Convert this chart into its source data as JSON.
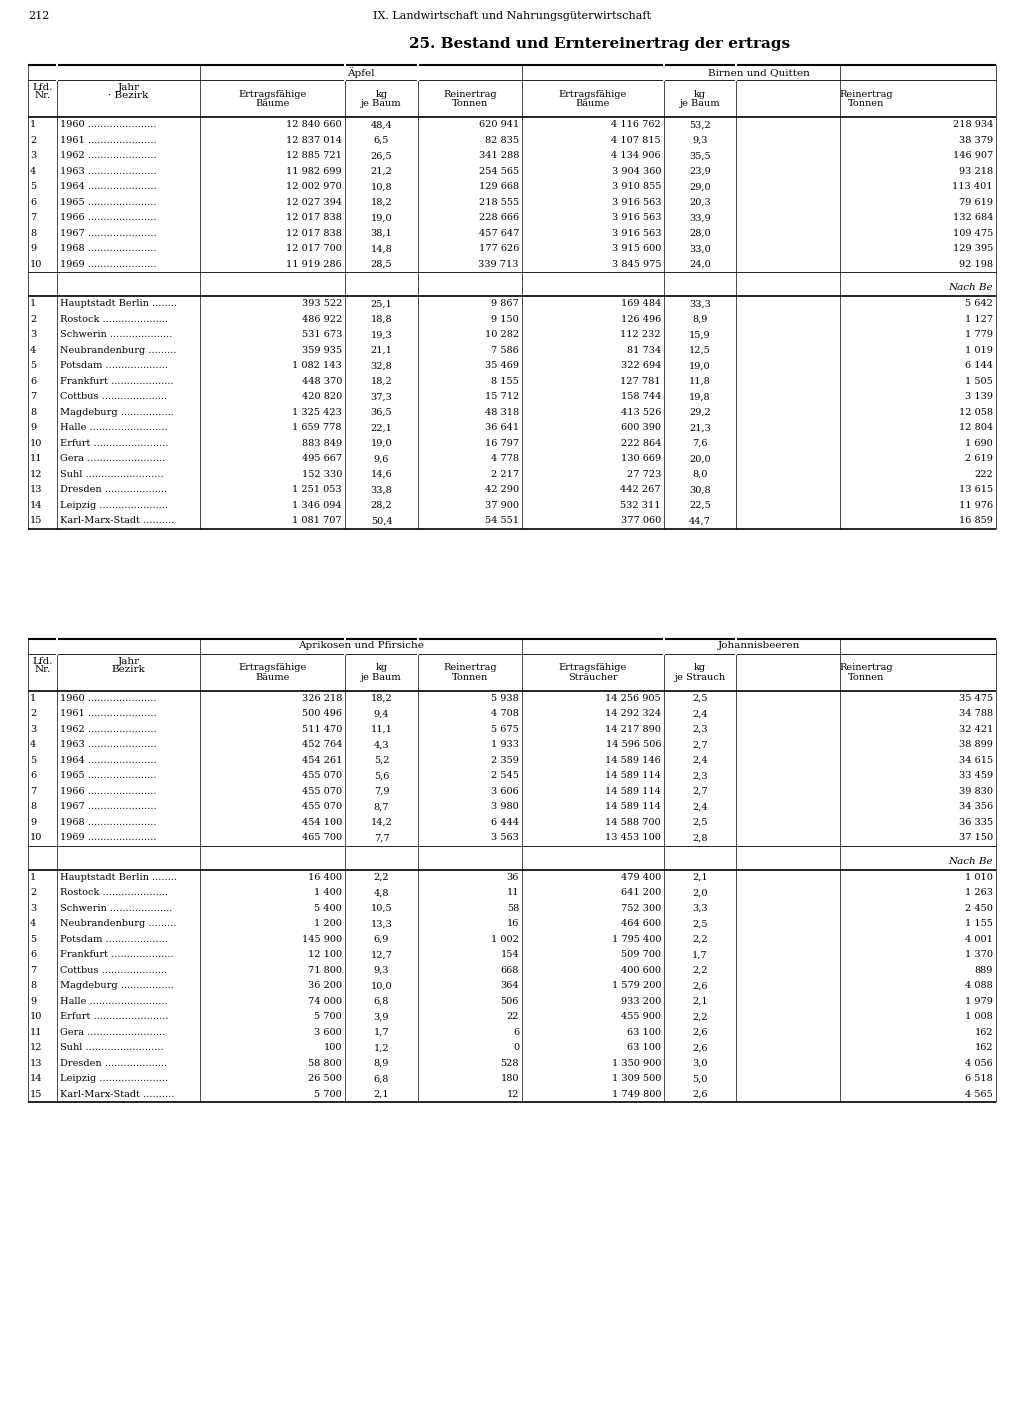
{
  "page_number": "212",
  "header_center": "IX. Landwirtschaft und Nahrungsgüterwirtschaft",
  "title": "25. Bestand und Erntereinertrag der ertrags",
  "table1": {
    "years_rows": [
      [
        "1",
        "1960",
        "12 840 660",
        "48,4",
        "620 941",
        "4 116 762",
        "53,2",
        "218 934"
      ],
      [
        "2",
        "1961",
        "12 837 014",
        "6,5",
        "82 835",
        "4 107 815",
        "9,3",
        "38 379"
      ],
      [
        "3",
        "1962",
        "12 885 721",
        "26,5",
        "341 288",
        "4 134 906",
        "35,5",
        "146 907"
      ],
      [
        "4",
        "1963",
        "11 982 699",
        "21,2",
        "254 565",
        "3 904 360",
        "23,9",
        "93 218"
      ],
      [
        "5",
        "1964",
        "12 002 970",
        "10,8",
        "129 668",
        "3 910 855",
        "29,0",
        "113 401"
      ],
      [
        "6",
        "1965",
        "12 027 394",
        "18,2",
        "218 555",
        "3 916 563",
        "20,3",
        "79 619"
      ],
      [
        "7",
        "1966",
        "12 017 838",
        "19,0",
        "228 666",
        "3 916 563",
        "33,9",
        "132 684"
      ],
      [
        "8",
        "1967",
        "12 017 838",
        "38,1",
        "457 647",
        "3 916 563",
        "28,0",
        "109 475"
      ],
      [
        "9",
        "1968",
        "12 017 700",
        "14,8",
        "177 626",
        "3 915 600",
        "33,0",
        "129 395"
      ],
      [
        "10",
        "1969",
        "11 919 286",
        "28,5",
        "339 713",
        "3 845 975",
        "24,0",
        "92 198"
      ]
    ],
    "bezirk_rows": [
      [
        "1",
        "Hauptstadt Berlin ........",
        "393 522",
        "25,1",
        "9 867",
        "169 484",
        "33,3",
        "5 642"
      ],
      [
        "2",
        "Rostock .....................",
        "486 922",
        "18,8",
        "9 150",
        "126 496",
        "8,9",
        "1 127"
      ],
      [
        "3",
        "Schwerin ....................",
        "531 673",
        "19,3",
        "10 282",
        "112 232",
        "15,9",
        "1 779"
      ],
      [
        "4",
        "Neubrandenburg .........",
        "359 935",
        "21,1",
        "7 586",
        "81 734",
        "12,5",
        "1 019"
      ],
      [
        "5",
        "Potsdam ....................",
        "1 082 143",
        "32,8",
        "35 469",
        "322 694",
        "19,0",
        "6 144"
      ],
      [
        "6",
        "Frankfurt ....................",
        "448 370",
        "18,2",
        "8 155",
        "127 781",
        "11,8",
        "1 505"
      ],
      [
        "7",
        "Cottbus .....................",
        "420 820",
        "37,3",
        "15 712",
        "158 744",
        "19,8",
        "3 139"
      ],
      [
        "8",
        "Magdeburg .................",
        "1 325 423",
        "36,5",
        "48 318",
        "413 526",
        "29,2",
        "12 058"
      ],
      [
        "9",
        "Halle .........................",
        "1 659 778",
        "22,1",
        "36 641",
        "600 390",
        "21,3",
        "12 804"
      ],
      [
        "10",
        "Erfurt ........................",
        "883 849",
        "19,0",
        "16 797",
        "222 864",
        "7,6",
        "1 690"
      ],
      [
        "11",
        "Gera .........................",
        "495 667",
        "9,6",
        "4 778",
        "130 669",
        "20,0",
        "2 619"
      ],
      [
        "12",
        "Suhl .........................",
        "152 330",
        "14,6",
        "2 217",
        "27 723",
        "8,0",
        "222"
      ],
      [
        "13",
        "Dresden ....................",
        "1 251 053",
        "33,8",
        "42 290",
        "442 267",
        "30,8",
        "13 615"
      ],
      [
        "14",
        "Leipzig ......................",
        "1 346 094",
        "28,2",
        "37 900",
        "532 311",
        "22,5",
        "11 976"
      ],
      [
        "15",
        "Karl-Marx-Stadt ..........",
        "1 081 707",
        "50,4",
        "54 551",
        "377 060",
        "44,7",
        "16 859"
      ]
    ]
  },
  "table2": {
    "years_rows": [
      [
        "1",
        "1960",
        "326 218",
        "18,2",
        "5 938",
        "14 256 905",
        "2,5",
        "35 475"
      ],
      [
        "2",
        "1961",
        "500 496",
        "9,4",
        "4 708",
        "14 292 324",
        "2,4",
        "34 788"
      ],
      [
        "3",
        "1962",
        "511 470",
        "11,1",
        "5 675",
        "14 217 890",
        "2,3",
        "32 421"
      ],
      [
        "4",
        "1963",
        "452 764",
        "4,3",
        "1 933",
        "14 596 506",
        "2,7",
        "38 899"
      ],
      [
        "5",
        "1964",
        "454 261",
        "5,2",
        "2 359",
        "14 589 146",
        "2,4",
        "34 615"
      ],
      [
        "6",
        "1965",
        "455 070",
        "5,6",
        "2 545",
        "14 589 114",
        "2,3",
        "33 459"
      ],
      [
        "7",
        "1966",
        "455 070",
        "7,9",
        "3 606",
        "14 589 114",
        "2,7",
        "39 830"
      ],
      [
        "8",
        "1967",
        "455 070",
        "8,7",
        "3 980",
        "14 589 114",
        "2,4",
        "34 356"
      ],
      [
        "9",
        "1968",
        "454 100",
        "14,2",
        "6 444",
        "14 588 700",
        "2,5",
        "36 335"
      ],
      [
        "10",
        "1969",
        "465 700",
        "7,7",
        "3 563",
        "13 453 100",
        "2,8",
        "37 150"
      ]
    ],
    "bezirk_rows": [
      [
        "1",
        "Hauptstadt Berlin ........",
        "16 400",
        "2,2",
        "36",
        "479 400",
        "2,1",
        "1 010"
      ],
      [
        "2",
        "Rostock .....................",
        "1 400",
        "4,8",
        "11",
        "641 200",
        "2,0",
        "1 263"
      ],
      [
        "3",
        "Schwerin ....................",
        "5 400",
        "10,5",
        "58",
        "752 300",
        "3,3",
        "2 450"
      ],
      [
        "4",
        "Neubrandenburg .........",
        "1 200",
        "13,3",
        "16",
        "464 600",
        "2,5",
        "1 155"
      ],
      [
        "5",
        "Potsdam ....................",
        "145 900",
        "6,9",
        "1 002",
        "1 795 400",
        "2,2",
        "4 001"
      ],
      [
        "6",
        "Frankfurt ....................",
        "12 100",
        "12,7",
        "154",
        "509 700",
        "1,7",
        "1 370"
      ],
      [
        "7",
        "Cottbus .....................",
        "71 800",
        "9,3",
        "668",
        "400 600",
        "2,2",
        "889"
      ],
      [
        "8",
        "Magdeburg .................",
        "36 200",
        "10,0",
        "364",
        "1 579 200",
        "2,6",
        "4 088"
      ],
      [
        "9",
        "Halle .........................",
        "74 000",
        "6,8",
        "506",
        "933 200",
        "2,1",
        "1 979"
      ],
      [
        "10",
        "Erfurt ........................",
        "5 700",
        "3,9",
        "22",
        "455 900",
        "2,2",
        "1 008"
      ],
      [
        "11",
        "Gera .........................",
        "3 600",
        "1,7",
        "6",
        "63 100",
        "2,6",
        "162"
      ],
      [
        "12",
        "Suhl .........................",
        "100",
        "1,2",
        "0",
        "63 100",
        "2,6",
        "162"
      ],
      [
        "13",
        "Dresden ....................",
        "58 800",
        "8,9",
        "528",
        "1 350 900",
        "3,0",
        "4 056"
      ],
      [
        "14",
        "Leipzig ......................",
        "26 500",
        "6,8",
        "180",
        "1 309 500",
        "5,0",
        "6 518"
      ],
      [
        "15",
        "Karl-Marx-Stadt ..........",
        "5 700",
        "2,1",
        "12",
        "1 749 800",
        "2,6",
        "4 565"
      ]
    ]
  }
}
